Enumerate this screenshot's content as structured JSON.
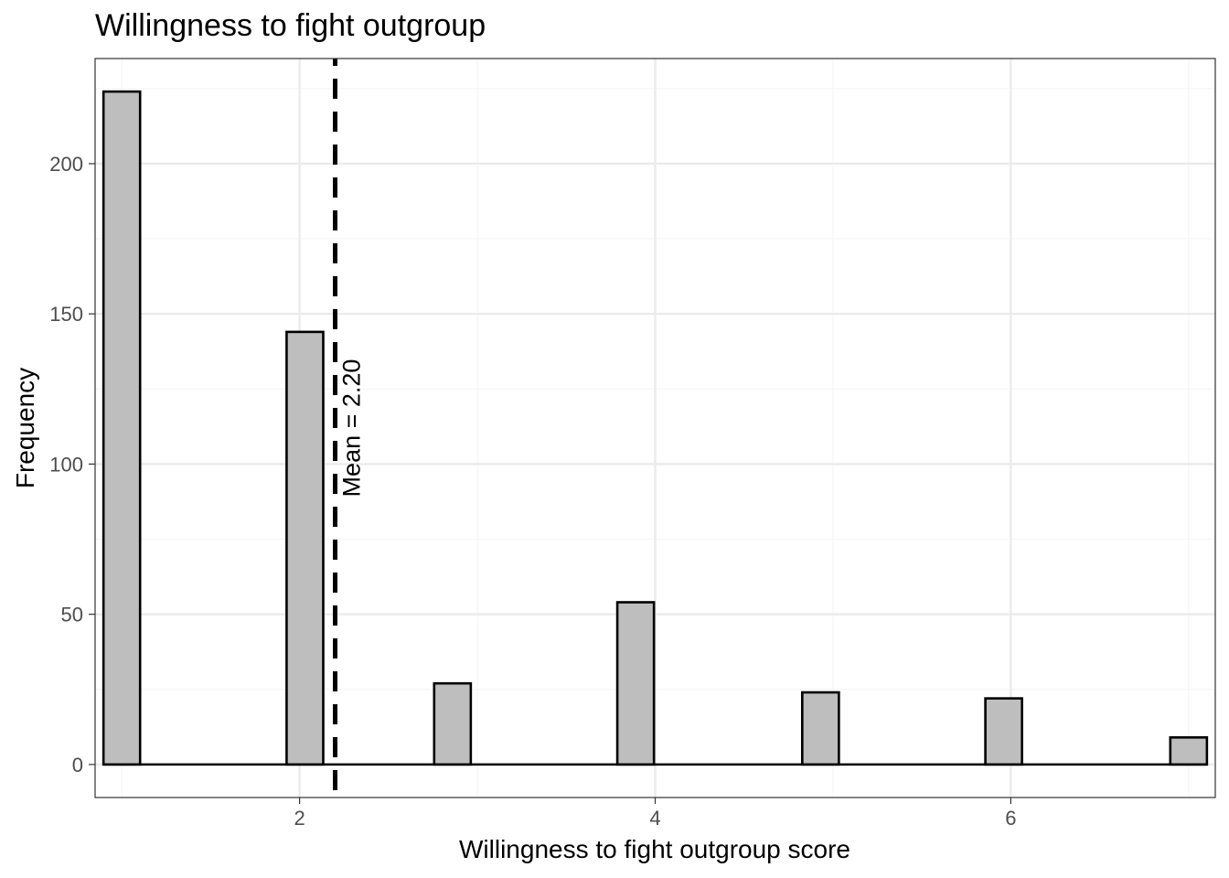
{
  "chart_data": {
    "type": "bar",
    "title": "Willingness to fight outgroup",
    "xlabel": "Willingness to fight outgroup score",
    "ylabel": "Frequency",
    "xlim": [
      0.85,
      7.15
    ],
    "ylim": [
      -11,
      235
    ],
    "x_ticks": [
      2,
      4,
      6
    ],
    "y_ticks": [
      0,
      50,
      100,
      150,
      200
    ],
    "x_minor_ticks": [
      1,
      3,
      5,
      7
    ],
    "y_minor_ticks": [
      25,
      75,
      125,
      175,
      225
    ],
    "bin_width": 0.206,
    "x": [
      1,
      2.03,
      2.86,
      3.89,
      4.93,
      5.96,
      7
    ],
    "values": [
      224,
      144,
      27,
      54,
      24,
      22,
      9
    ],
    "mean": 2.2,
    "mean_label": "Mean = 2.20",
    "grid": true,
    "colors": {
      "bar_fill": "#bebebe",
      "bar_stroke": "#000000",
      "grid_major": "#ebebeb",
      "grid_minor": "#f5f5f5",
      "panel_border": "#333333",
      "mean_line": "#000000"
    }
  }
}
